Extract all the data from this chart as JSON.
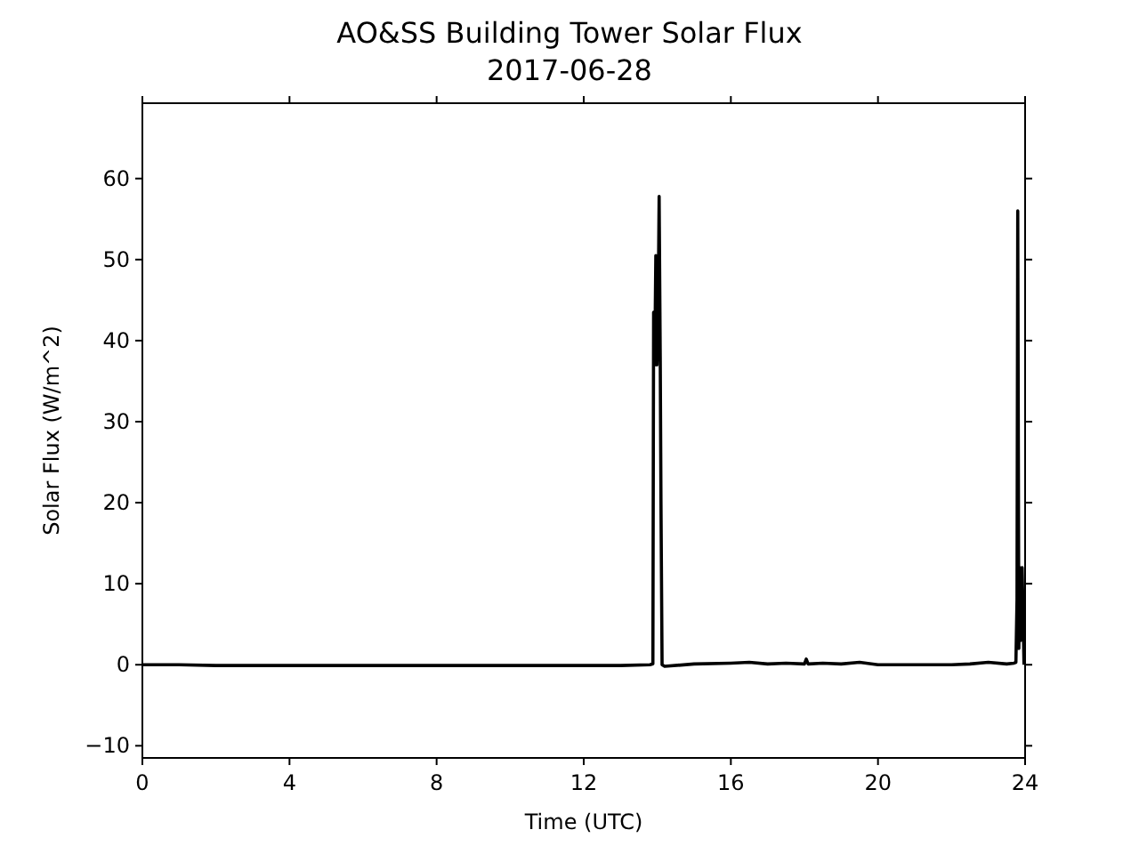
{
  "chart_data": {
    "type": "line",
    "title": "AO&SS Building Tower Solar Flux",
    "subtitle": "2017-06-28",
    "xlabel": "Time (UTC)",
    "ylabel": "Solar Flux (W/m^2)",
    "xlim": [
      0,
      24
    ],
    "ylim": [
      -11.5,
      69.3
    ],
    "xticks": [
      0,
      4,
      8,
      12,
      16,
      20,
      24
    ],
    "yticks": [
      -10,
      0,
      10,
      20,
      30,
      40,
      50,
      60
    ],
    "grid": false,
    "series": [
      {
        "color": "#000000",
        "x": [
          0,
          1,
          2,
          4,
          6,
          8,
          10,
          12,
          13,
          13.8,
          13.88,
          13.9,
          13.93,
          13.96,
          13.99,
          14.02,
          14.05,
          14.08,
          14.1,
          14.13,
          14.2,
          15,
          16,
          16.5,
          17,
          17.5,
          18,
          18.05,
          18.1,
          18.5,
          19,
          19.5,
          20,
          21,
          22,
          22.5,
          23,
          23.5,
          23.7,
          23.75,
          23.78,
          23.8,
          23.83,
          23.86,
          23.88,
          23.92,
          23.95,
          23.97
        ],
        "values": [
          0,
          0,
          -0.1,
          -0.1,
          -0.1,
          -0.1,
          -0.1,
          -0.1,
          -0.1,
          0,
          0.1,
          43.5,
          37,
          50.5,
          37,
          42,
          57.8,
          38,
          20,
          0,
          -0.2,
          0.1,
          0.2,
          0.3,
          0.1,
          0.2,
          0.1,
          0.7,
          0.1,
          0.2,
          0.1,
          0.3,
          0,
          0,
          0,
          0.1,
          0.3,
          0.1,
          0.2,
          0.3,
          8,
          56,
          2,
          12,
          3,
          12,
          5,
          0
        ]
      }
    ]
  }
}
